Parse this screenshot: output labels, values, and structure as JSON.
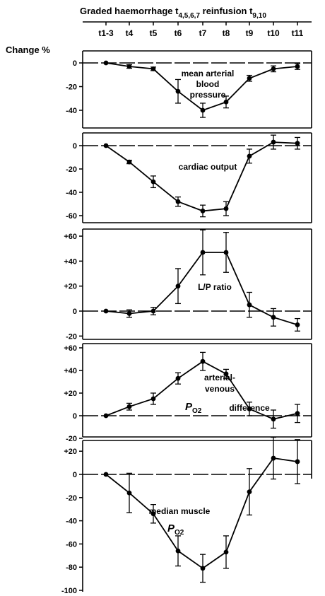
{
  "header": {
    "label1": "Graded haemorrhage t",
    "sub1": "4,5,6,7",
    "label2": " reinfusion t",
    "sub2": "9,10"
  },
  "y_title": "Change %",
  "time_ticks": [
    "t1-3",
    "t4",
    "t5",
    "t6",
    "t7",
    "t8",
    "t9",
    "t10",
    "t11"
  ],
  "chart_data": [
    {
      "type": "line",
      "annotation": [
        "mean arterial",
        "blood",
        "pressure"
      ],
      "x": [
        "t1-3",
        "t4",
        "t5",
        "t6",
        "t7",
        "t8",
        "t9",
        "t10",
        "t11"
      ],
      "values": [
        0,
        -3,
        -5,
        -24,
        -40,
        -33,
        -13,
        -5,
        -3
      ],
      "errors": [
        0,
        1.5,
        1.5,
        10,
        6,
        5,
        2.5,
        2.5,
        2.5
      ],
      "yticks": [
        "0",
        "-20",
        "-40"
      ],
      "ylim": [
        -47,
        11
      ]
    },
    {
      "type": "line",
      "annotation": [
        "cardiac output"
      ],
      "x": [
        "t1-3",
        "t4",
        "t5",
        "t6",
        "t7",
        "t8",
        "t9",
        "t10",
        "t11"
      ],
      "values": [
        0,
        -14,
        -31,
        -48,
        -56,
        -54,
        -9,
        3,
        2
      ],
      "errors": [
        0,
        1.5,
        5,
        4,
        5,
        6,
        6,
        6,
        5
      ],
      "yticks": [
        "0",
        "-20",
        "-40",
        "-60"
      ],
      "ylim": [
        -63,
        17
      ]
    },
    {
      "type": "line",
      "annotation": [
        "L/P ratio"
      ],
      "x": [
        "t1-3",
        "t4",
        "t5",
        "t6",
        "t7",
        "t8",
        "t9",
        "t10",
        "t11"
      ],
      "values": [
        0,
        -2,
        0,
        20,
        47,
        47,
        5,
        -5,
        -11
      ],
      "errors": [
        0,
        3,
        3,
        14,
        18,
        16,
        10,
        7,
        5
      ],
      "yticks": [
        "+60",
        "+40",
        "+20",
        "0",
        "-20"
      ],
      "ylim": [
        -20,
        70
      ]
    },
    {
      "type": "line",
      "annotation": [
        "arterial-",
        "venous",
        "P",
        "O2",
        "difference"
      ],
      "x": [
        "t1-3",
        "t4",
        "t5",
        "t6",
        "t7",
        "t8",
        "t9",
        "t10",
        "t11"
      ],
      "values": [
        0,
        8,
        15,
        33,
        48,
        37,
        6,
        -3,
        2
      ],
      "errors": [
        0,
        3,
        5,
        5,
        8,
        4,
        6,
        8,
        8
      ],
      "yticks": [
        "+60",
        "+40",
        "+20",
        "0",
        "-20"
      ],
      "ylim": [
        -20,
        60
      ]
    },
    {
      "type": "line",
      "annotation": [
        "median muscle",
        "P",
        "O2"
      ],
      "x": [
        "t1-3",
        "t4",
        "t5",
        "t6",
        "t7",
        "t8",
        "t9",
        "t10",
        "t11"
      ],
      "values": [
        0,
        -16,
        -34,
        -66,
        -81,
        -67,
        -15,
        14,
        11
      ],
      "errors": [
        0,
        17,
        8,
        13,
        12,
        14,
        20,
        18,
        19
      ],
      "yticks": [
        "+20",
        "0",
        "-20",
        "-40",
        "-60",
        "-80",
        "-100"
      ],
      "ylim": [
        -100,
        30
      ]
    }
  ]
}
